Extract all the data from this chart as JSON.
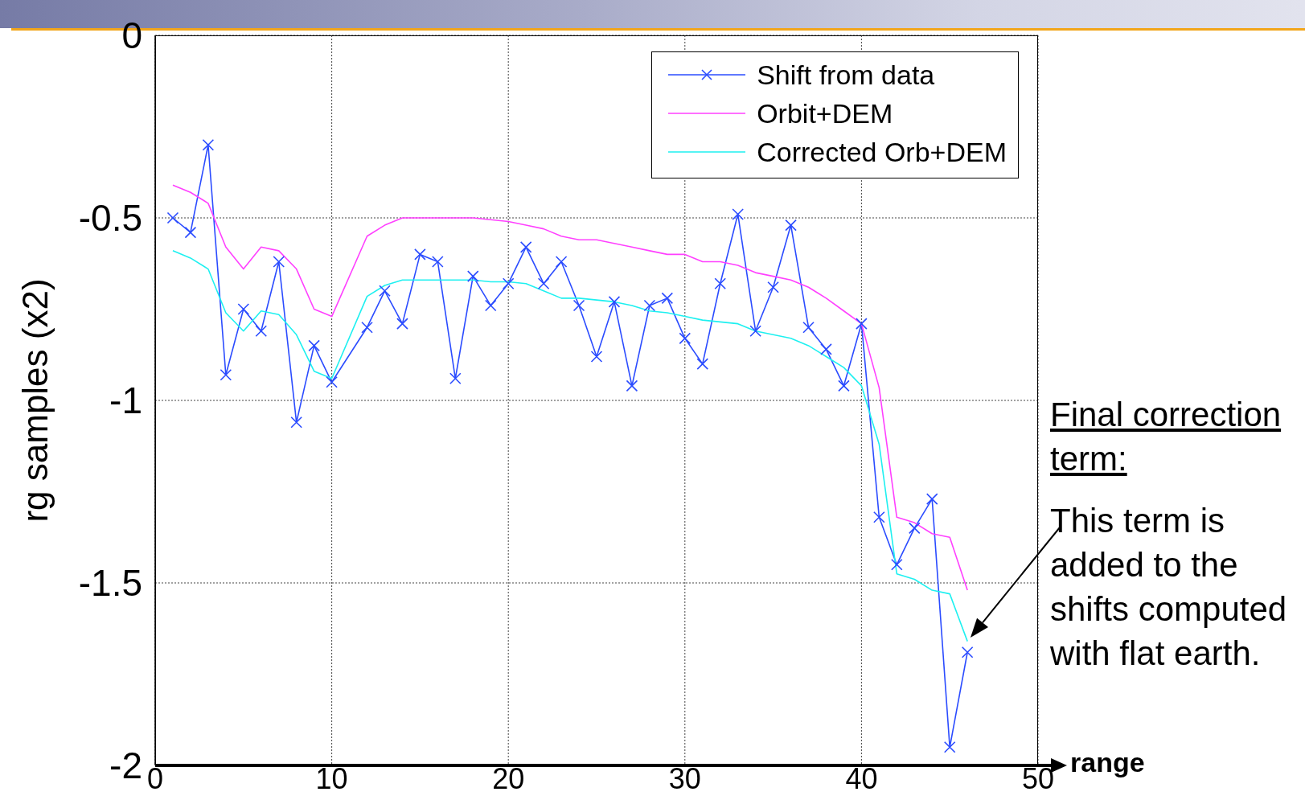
{
  "chart_data": {
    "type": "line",
    "xlabel": "range",
    "ylabel": "rg samples (x2)",
    "annotations": [
      "Final correction term:",
      {
        "text": "This term is added to the shifts computed with flat earth.",
        "x": 46,
        "y": -1.66
      }
    ],
    "x": [
      1,
      2,
      3,
      4,
      5,
      6,
      7,
      8,
      9,
      10,
      12,
      13,
      14,
      15,
      16,
      17,
      18,
      19,
      20,
      21,
      22,
      23,
      24,
      25,
      26,
      27,
      28,
      29,
      30,
      31,
      32,
      33,
      34,
      35,
      36,
      37,
      38,
      39,
      40,
      41,
      42,
      43,
      44,
      45,
      46
    ],
    "series": [
      {
        "name": "Shift from data",
        "color": "#2b4cff",
        "marker": "cross",
        "values": [
          -0.5,
          -0.54,
          -0.3,
          -0.93,
          -0.75,
          -0.81,
          -0.62,
          -1.06,
          -0.85,
          -0.95,
          -0.8,
          -0.7,
          -0.79,
          -0.6,
          -0.62,
          -0.94,
          -0.66,
          -0.74,
          -0.68,
          -0.58,
          -0.68,
          -0.62,
          -0.74,
          -0.88,
          -0.73,
          -0.96,
          -0.74,
          -0.72,
          -0.83,
          -0.9,
          -0.68,
          -0.49,
          -0.81,
          -0.69,
          -0.52,
          -0.8,
          -0.86,
          -0.96,
          -0.79,
          -1.32,
          -1.45,
          -1.35,
          -1.27,
          -1.95,
          -1.69
        ]
      },
      {
        "name": "Orbit+DEM",
        "color": "#ff40ff",
        "values": [
          -0.41,
          -0.43,
          -0.46,
          -0.58,
          -0.64,
          -0.58,
          -0.59,
          -0.64,
          -0.75,
          -0.77,
          -0.55,
          -0.52,
          -0.5,
          -0.5,
          -0.5,
          -0.5,
          -0.5,
          -0.505,
          -0.51,
          -0.52,
          -0.53,
          -0.55,
          -0.56,
          -0.56,
          -0.57,
          -0.58,
          -0.59,
          -0.6,
          -0.6,
          -0.62,
          -0.62,
          -0.63,
          -0.65,
          -0.66,
          -0.67,
          -0.69,
          -0.72,
          -0.755,
          -0.79,
          -0.965,
          -1.32,
          -1.335,
          -1.365,
          -1.375,
          -1.52
        ]
      },
      {
        "name": "Corrected Orb+DEM",
        "color": "#1ef0f0",
        "values": [
          -0.59,
          -0.61,
          -0.64,
          -0.76,
          -0.81,
          -0.755,
          -0.765,
          -0.82,
          -0.92,
          -0.94,
          -0.715,
          -0.685,
          -0.67,
          -0.67,
          -0.67,
          -0.67,
          -0.67,
          -0.675,
          -0.675,
          -0.68,
          -0.7,
          -0.72,
          -0.72,
          -0.725,
          -0.73,
          -0.74,
          -0.755,
          -0.76,
          -0.77,
          -0.78,
          -0.785,
          -0.79,
          -0.81,
          -0.82,
          -0.83,
          -0.85,
          -0.88,
          -0.91,
          -0.96,
          -1.12,
          -1.475,
          -1.49,
          -1.52,
          -1.53,
          -1.66
        ]
      }
    ],
    "xlim": [
      0,
      50
    ],
    "xticks": [
      0,
      10,
      20,
      30,
      40,
      50
    ],
    "ylim": [
      -2,
      0
    ],
    "yticks": [
      -2,
      -1.5,
      -1,
      -0.5,
      0
    ],
    "grid": true,
    "legend": "top right",
    "line_style": "solid"
  }
}
